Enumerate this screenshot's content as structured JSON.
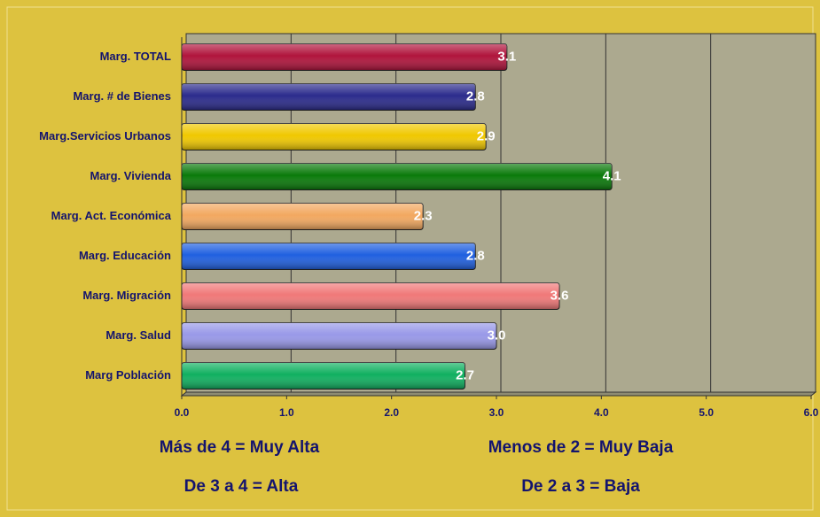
{
  "chart_data": {
    "type": "hbar",
    "categories": [
      "Marg. TOTAL",
      "Marg. # de Bienes",
      "Marg.Servicios Urbanos",
      "Marg. Vivienda",
      "Marg. Act. Económica",
      "Marg. Educación",
      "Marg. Migración",
      "Marg. Salud",
      "Marg Población"
    ],
    "values": [
      3.1,
      2.8,
      2.9,
      4.1,
      2.3,
      2.8,
      3.6,
      3.0,
      2.7
    ],
    "value_labels": [
      "3.1",
      "2.8",
      "2.9",
      "4.1",
      "2.3",
      "2.8",
      "3.6",
      "3.0",
      "2.7"
    ],
    "colors": [
      "#b0143c",
      "#2b2b8c",
      "#f0c800",
      "#0a7a0a",
      "#f2a860",
      "#2060e0",
      "#f07878",
      "#9898e8",
      "#10b060"
    ],
    "xlim": [
      0,
      6
    ],
    "xticks": [
      {
        "value": 0,
        "label": "0.0"
      },
      {
        "value": 1,
        "label": "1.0"
      },
      {
        "value": 2,
        "label": "2.0"
      },
      {
        "value": 3,
        "label": "3.0"
      },
      {
        "value": 4,
        "label": "4.0"
      },
      {
        "value": 5,
        "label": "5.0"
      },
      {
        "value": 6,
        "label": "6.0"
      }
    ],
    "grid": true,
    "annotations": [
      "Más de 4 = Muy Alta",
      "Menos de 2 = Muy Baja",
      "De 3 a 4 = Alta",
      "De 2 a 3 = Baja"
    ]
  }
}
